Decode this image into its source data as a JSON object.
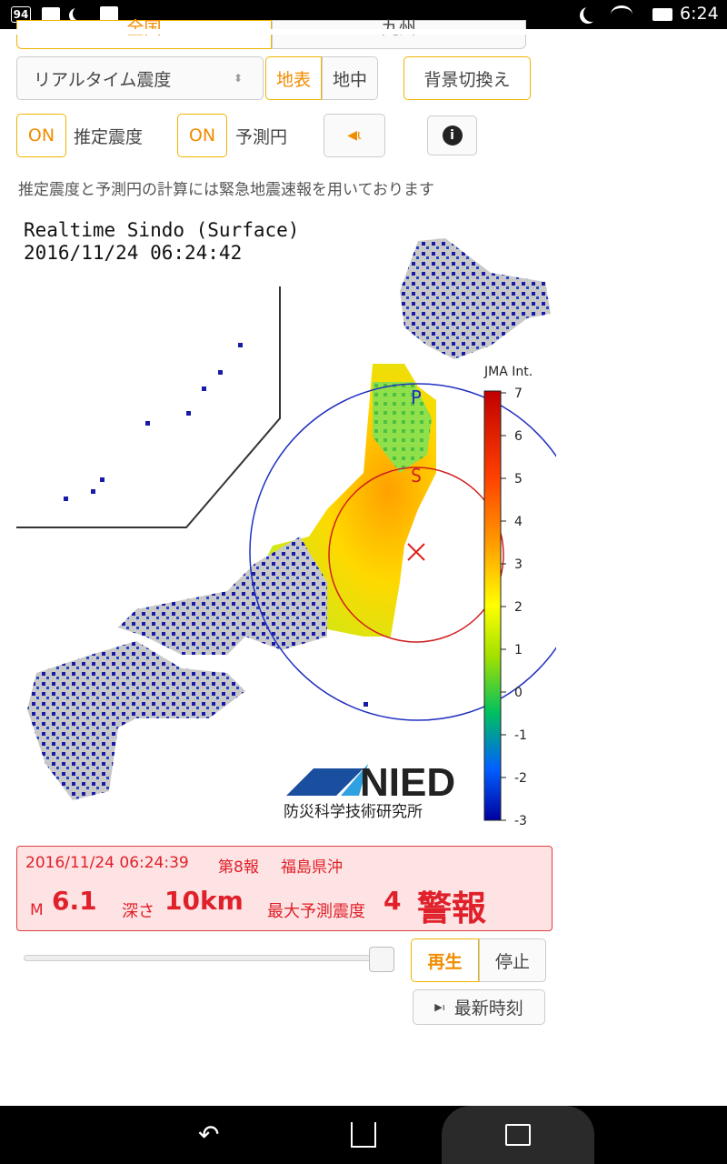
{
  "status_bar": {
    "notification_count": "94",
    "time": "6:24"
  },
  "tabs": [
    "全国",
    "九州"
  ],
  "controls": {
    "mode_select": "リアルタイム震度",
    "layer_toggle": [
      "地表",
      "地中"
    ],
    "background_button": "背景切換え",
    "estimate_toggle": {
      "state": "ON",
      "label": "推定震度"
    },
    "circle_toggle": {
      "state": "ON",
      "label": "予測円"
    }
  },
  "note": "推定震度と予測円の計算には緊急地震速報を用いております",
  "map": {
    "title": "Realtime Sindo (Surface)",
    "timestamp": "2016/11/24 06:24:42",
    "p_wave_label": "P",
    "s_wave_label": "S",
    "scale_label": "JMA Int.",
    "scale_ticks": [
      "7",
      "6",
      "5",
      "4",
      "3",
      "2",
      "1",
      "0",
      "-1",
      "-2",
      "-3"
    ],
    "logo": "NIED",
    "logo_caption": "防災科学技術研究所"
  },
  "alert": {
    "time": "2016/11/24 06:24:39",
    "report": "第8報",
    "region": "福島県沖",
    "magnitude_label": "M",
    "magnitude": "6.1",
    "depth_label": "深さ",
    "depth": "10km",
    "max_intensity_label": "最大予測震度",
    "max_intensity": "4",
    "level": "警報"
  },
  "playback": {
    "play": "再生",
    "stop": "停止",
    "latest": "最新時刻"
  }
}
